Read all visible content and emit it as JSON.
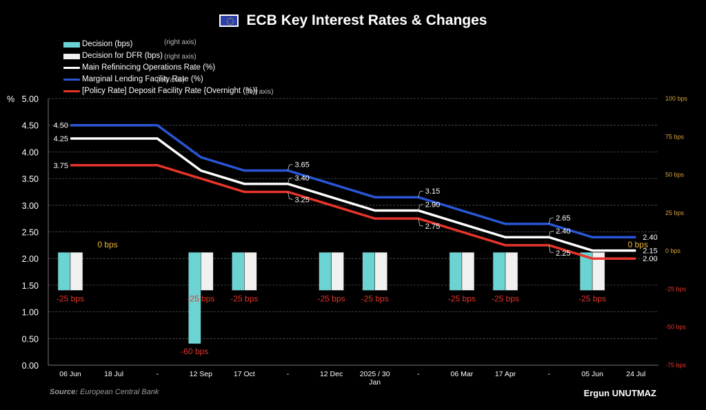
{
  "title": "ECB Key Interest Rates & Changes",
  "flag_icon": "eu-flag-icon",
  "legend": [
    {
      "label": "Decision (bps)",
      "note": "(right axis)",
      "kind": "box",
      "color": "#6bd3d1"
    },
    {
      "label": "Decision for DFR (bps)",
      "note": "(right axis)",
      "kind": "box",
      "color": "#f1f1f1"
    },
    {
      "label": "Main Refinincing Operations Rate (%)",
      "note": "",
      "kind": "line",
      "color": "#ffffff"
    },
    {
      "label": "Marginal Lending Facility Rate (%)",
      "note": "(left axis)",
      "kind": "line",
      "color": "#2a56d6"
    },
    {
      "label": "[Policy Rate] Deposit Facility Rate {Overnight (%)}",
      "note": "(left axis)",
      "kind": "line",
      "color": "#e8342a"
    }
  ],
  "source_label": "Source:",
  "source_text": "European Central Bank",
  "author": "Ergun UNUTMAZ",
  "colors": {
    "decision": "#6bd3d1",
    "dfr_decision": "#f1f1f1",
    "mro": "#ffffff",
    "mlf": "#2a56d6",
    "dfr": "#e8342a",
    "right_pos": "#d9a43a",
    "right_neg": "#e8342a",
    "zero_label": "#e9b93a",
    "grid": "#555555"
  },
  "chart_data": {
    "type": "line",
    "title": "ECB Key Interest Rates & Changes",
    "categories": [
      "06 Jun",
      "18 Jul",
      "-",
      "12 Sep",
      "17 Oct",
      "-",
      "12 Dec",
      "2025 / 30\nJan",
      "-",
      "06 Mar",
      "17 Apr",
      "-",
      "05 Jun",
      "24 Jul"
    ],
    "left_axis": {
      "label": "%",
      "range": [
        0,
        5
      ],
      "ticks": [
        "0.00",
        "0.50",
        "1.00",
        "1.50",
        "2.00",
        "2.50",
        "3.00",
        "3.50",
        "4.00",
        "4.50",
        "5.00"
      ]
    },
    "right_axis": {
      "range": [
        -75,
        100
      ],
      "ticks": [
        "-75 bps",
        "-50 bps",
        "-25 bps",
        "0 bps",
        "25 bps",
        "50 bps",
        "75 bps",
        "100 bps"
      ],
      "tick_values": [
        -75,
        -50,
        -25,
        0,
        25,
        50,
        75,
        100
      ]
    },
    "grid": true,
    "legend_position": "top-left",
    "series": [
      {
        "name": "Marginal Lending Facility Rate (%)",
        "axis": "left",
        "key": "mlf",
        "values": [
          4.5,
          4.5,
          4.5,
          3.9,
          3.65,
          3.65,
          3.4,
          3.15,
          3.15,
          2.9,
          2.65,
          2.65,
          2.4,
          2.4
        ]
      },
      {
        "name": "Main Refinincing Operations Rate (%)",
        "axis": "left",
        "key": "mro",
        "values": [
          4.25,
          4.25,
          4.25,
          3.65,
          3.4,
          3.4,
          3.15,
          2.9,
          2.9,
          2.65,
          2.4,
          2.4,
          2.15,
          2.15
        ]
      },
      {
        "name": "[Policy Rate] Deposit Facility Rate {Overnight (%)}",
        "axis": "left",
        "key": "dfr",
        "values": [
          3.75,
          3.75,
          3.75,
          3.5,
          3.25,
          3.25,
          3.0,
          2.75,
          2.75,
          2.5,
          2.25,
          2.25,
          2.0,
          2.0
        ]
      },
      {
        "name": "Decision (bps)",
        "axis": "right",
        "type": "bar",
        "key": "decision",
        "values": [
          -25,
          0,
          null,
          -60,
          -25,
          null,
          -25,
          -25,
          null,
          -25,
          -25,
          null,
          -25,
          0
        ]
      },
      {
        "name": "Decision for DFR (bps)",
        "axis": "right",
        "type": "bar",
        "key": "dfr_decision",
        "values": [
          -25,
          0,
          null,
          -25,
          -25,
          null,
          -25,
          -25,
          null,
          -25,
          -25,
          null,
          -25,
          0
        ]
      }
    ],
    "bar_labels": [
      {
        "index": 0,
        "text": "-25 bps",
        "tone": "neg"
      },
      {
        "index": 1,
        "text": "0 bps",
        "tone": "zero"
      },
      {
        "index": 3,
        "text": "-25 bps",
        "tone": "neg"
      },
      {
        "index": 3,
        "text": "-60 bps",
        "tone": "neg",
        "deep": true
      },
      {
        "index": 4,
        "text": "-25 bps",
        "tone": "neg"
      },
      {
        "index": 6,
        "text": "-25 bps",
        "tone": "neg"
      },
      {
        "index": 7,
        "text": "-25 bps",
        "tone": "neg"
      },
      {
        "index": 9,
        "text": "-25 bps",
        "tone": "neg"
      },
      {
        "index": 10,
        "text": "-25 bps",
        "tone": "neg"
      },
      {
        "index": 12,
        "text": "-25 bps",
        "tone": "neg"
      },
      {
        "index": 13,
        "text": "0 bps",
        "tone": "zero"
      }
    ],
    "point_labels": [
      {
        "series": "mlf",
        "index": 0,
        "text": "4.50",
        "side": "left"
      },
      {
        "series": "mro",
        "index": 0,
        "text": "4.25",
        "side": "left"
      },
      {
        "series": "dfr",
        "index": 0,
        "text": "3.75",
        "side": "left"
      },
      {
        "series": "mlf",
        "index": 5,
        "text": "3.65",
        "side": "callout-up"
      },
      {
        "series": "mro",
        "index": 5,
        "text": "3.40",
        "side": "callout-up"
      },
      {
        "series": "dfr",
        "index": 5,
        "text": "3.25",
        "side": "callout-down"
      },
      {
        "series": "mlf",
        "index": 8,
        "text": "3.15",
        "side": "callout-up"
      },
      {
        "series": "mro",
        "index": 8,
        "text": "2.90",
        "side": "callout-up"
      },
      {
        "series": "dfr",
        "index": 8,
        "text": "2.75",
        "side": "callout-down"
      },
      {
        "series": "mlf",
        "index": 11,
        "text": "2.65",
        "side": "callout-up"
      },
      {
        "series": "mro",
        "index": 11,
        "text": "2.40",
        "side": "callout-up"
      },
      {
        "series": "dfr",
        "index": 11,
        "text": "2.25",
        "side": "callout-down"
      },
      {
        "series": "mlf",
        "index": 13,
        "text": "2.40",
        "side": "right"
      },
      {
        "series": "mro",
        "index": 13,
        "text": "2.15",
        "side": "right"
      },
      {
        "series": "dfr",
        "index": 13,
        "text": "2.00",
        "side": "right"
      }
    ]
  }
}
